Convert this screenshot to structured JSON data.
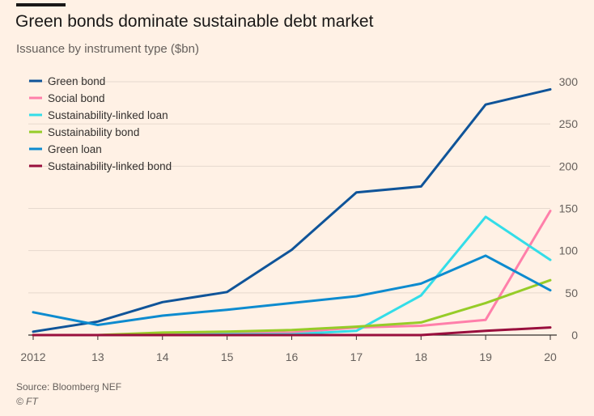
{
  "header": {
    "title": "Green bonds dominate sustainable debt market",
    "subtitle": "Issuance by instrument type ($bn)"
  },
  "footer": {
    "source": "Source: Bloomberg NEF",
    "credit": "© FT"
  },
  "colors": {
    "background": "#fff1e5",
    "grid": "#e6d9ce",
    "axis": "#33302e",
    "text": "#66605c"
  },
  "chart_data": {
    "type": "line",
    "title": "Green bonds dominate sustainable debt market",
    "subtitle": "Issuance by instrument type ($bn)",
    "xlabel": "",
    "ylabel": "",
    "x": [
      "2012",
      "13",
      "14",
      "15",
      "16",
      "17",
      "18",
      "19",
      "20"
    ],
    "ylim": [
      0,
      300
    ],
    "yticks": [
      0,
      50,
      100,
      150,
      200,
      250,
      300
    ],
    "y_axis_side": "right",
    "grid": true,
    "legend_position": "top-left",
    "series": [
      {
        "name": "Green bond",
        "color": "#0f5499",
        "values": [
          4,
          16,
          39,
          51,
          101,
          169,
          176,
          273,
          291
        ]
      },
      {
        "name": "Social bond",
        "color": "#ff7faa",
        "values": [
          0,
          0,
          1,
          2,
          3,
          9,
          11,
          18,
          147
        ]
      },
      {
        "name": "Sustainability-linked loan",
        "color": "#33dde8",
        "values": [
          0,
          0,
          0,
          1,
          1,
          5,
          47,
          140,
          89
        ]
      },
      {
        "name": "Sustainability bond",
        "color": "#96cc28",
        "values": [
          0,
          0,
          3,
          4,
          6,
          10,
          15,
          38,
          65
        ]
      },
      {
        "name": "Green loan",
        "color": "#0d8bcf",
        "values": [
          27,
          12,
          23,
          30,
          38,
          46,
          61,
          94,
          53
        ]
      },
      {
        "name": "Sustainability-linked bond",
        "color": "#990f3d",
        "values": [
          0,
          0,
          0,
          0,
          0,
          0,
          0,
          5,
          9
        ]
      }
    ]
  }
}
